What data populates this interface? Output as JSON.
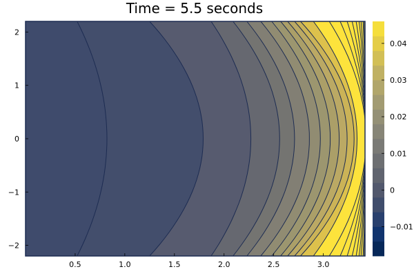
{
  "chart_data": {
    "type": "heatmap",
    "subtype": "filled-contour",
    "title": "Time = 5.5 seconds",
    "xlabel": "",
    "ylabel": "",
    "xlim": [
      0.0,
      3.42
    ],
    "ylim": [
      -2.2,
      2.2
    ],
    "x_ticks": [
      {
        "value": 0.5,
        "label": "0.5"
      },
      {
        "value": 1.0,
        "label": "1.0"
      },
      {
        "value": 1.5,
        "label": "1.5"
      },
      {
        "value": 2.0,
        "label": "2.0"
      },
      {
        "value": 2.5,
        "label": "2.5"
      },
      {
        "value": 3.0,
        "label": "3.0"
      }
    ],
    "y_ticks": [
      {
        "value": 2,
        "label": "2"
      },
      {
        "value": 1,
        "label": "1"
      },
      {
        "value": 0,
        "label": "0"
      },
      {
        "value": -1,
        "label": "−1"
      },
      {
        "value": -2,
        "label": "−2"
      }
    ],
    "colorbar": {
      "colormap": "cividis",
      "range": [
        -0.018,
        0.046
      ],
      "ticks": [
        {
          "value": -0.01,
          "label": "−0.01"
        },
        {
          "value": 0.0,
          "label": "0"
        },
        {
          "value": 0.01,
          "label": "0.01"
        },
        {
          "value": 0.02,
          "label": "0.02"
        },
        {
          "value": 0.03,
          "label": "0.03"
        },
        {
          "value": 0.04,
          "label": "0.04"
        }
      ],
      "level_step": 0.004
    },
    "contour_levels": [
      {
        "level": -0.002,
        "x_center": 0.82,
        "x_edge": 0.52,
        "color": "#434e6c"
      },
      {
        "level": 0.002,
        "x_center": 1.79,
        "x_edge": 1.25,
        "color": "#575b6f"
      },
      {
        "level": 0.006,
        "x_center": 2.27,
        "x_edge": 1.87,
        "color": "#666870"
      },
      {
        "level": 0.01,
        "x_center": 2.56,
        "x_edge": 2.09,
        "color": "#747471"
      },
      {
        "level": 0.014,
        "x_center": 2.71,
        "x_edge": 2.23,
        "color": "#827f74"
      },
      {
        "level": 0.018,
        "x_center": 2.86,
        "x_edge": 2.37,
        "color": "#918c72"
      },
      {
        "level": 0.022,
        "x_center": 2.97,
        "x_edge": 2.48,
        "color": "#9c966f"
      },
      {
        "level": 0.026,
        "x_center": 3.07,
        "x_edge": 2.57,
        "color": "#ab9f68"
      },
      {
        "level": 0.03,
        "x_center": 3.16,
        "x_edge": 2.64,
        "color": "#bba964"
      },
      {
        "level": 0.034,
        "x_center": 3.24,
        "x_edge": 2.71,
        "color": "#cbb357"
      },
      {
        "level": 0.038,
        "x_center": 3.31,
        "x_edge": 2.77,
        "color": "#ddc14c"
      },
      {
        "level": 0.042,
        "x_center": 3.34,
        "x_edge": 2.9,
        "color": "#fde33c"
      }
    ],
    "edge_fine_levels_x_edge": [
      3.06,
      3.17,
      3.24,
      3.29,
      3.33,
      3.36,
      3.38,
      3.4,
      3.41
    ],
    "background_color": "#3f4b6c",
    "line_color": "#1d2c52"
  }
}
